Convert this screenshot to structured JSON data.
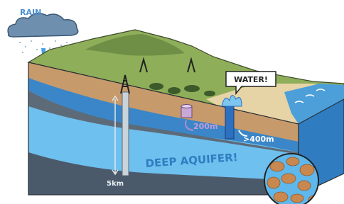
{
  "labels": {
    "rain": "RAIN",
    "water": "WATER!",
    "shallow_depth": "200m",
    "deep_depth": ">400m",
    "aquifer": "DEEP AQUIFER!",
    "well_depth": "5km"
  }
}
